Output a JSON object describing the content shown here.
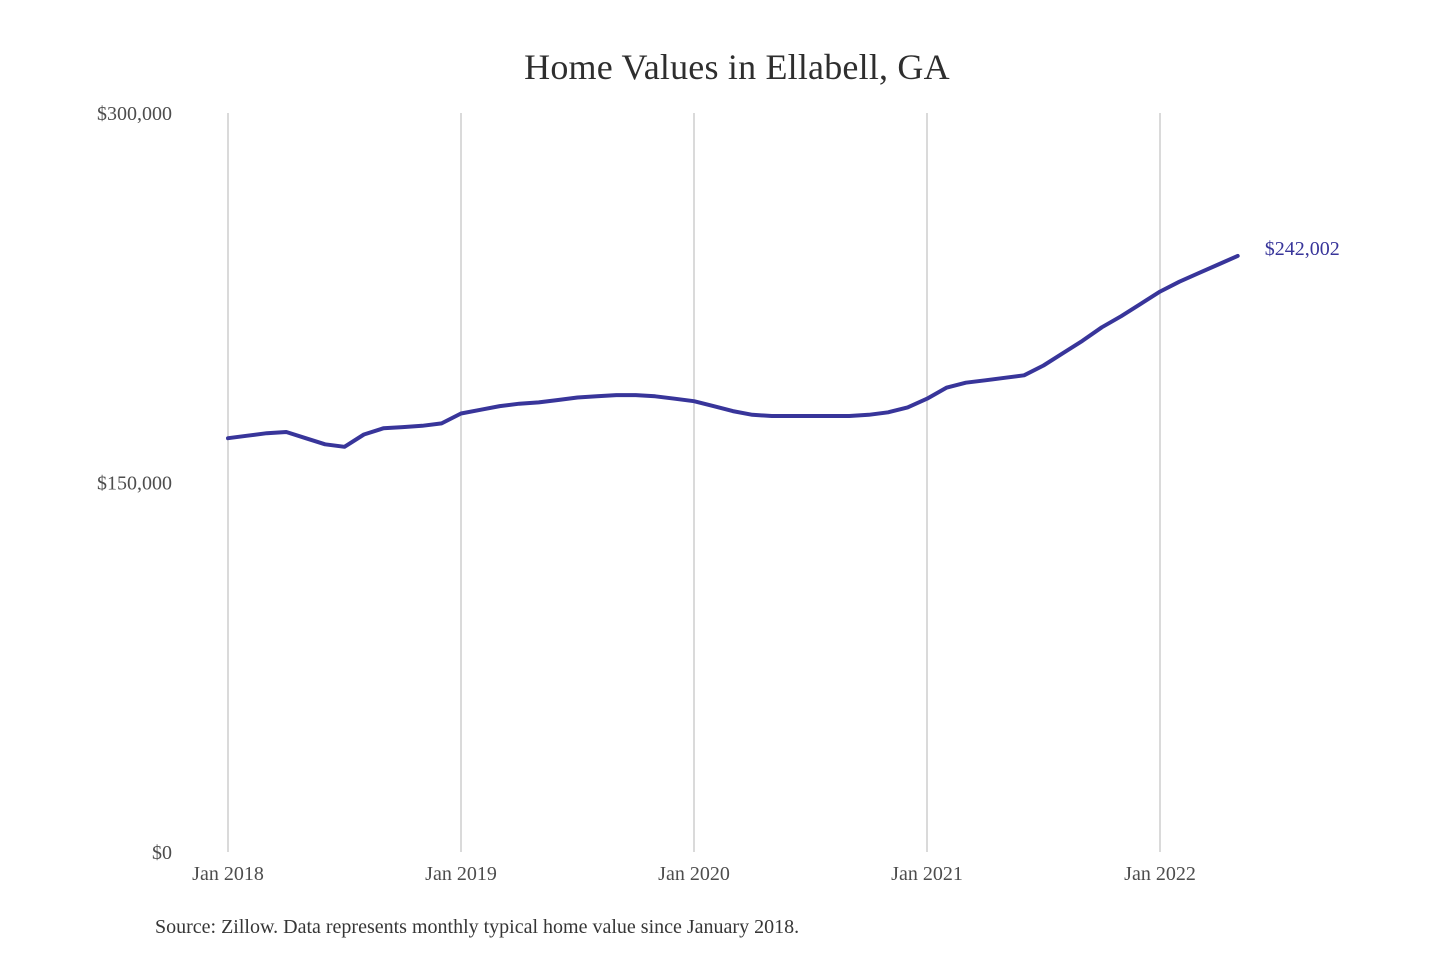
{
  "title": "Home Values in Ellabell, GA",
  "source_note": "Source: Zillow. Data represents monthly typical home value since January 2018.",
  "annotation": {
    "label": "$242,002"
  },
  "colors": {
    "line": "#38359a",
    "grid": "#cbcbcb",
    "axis_text": "#4d4d4d",
    "title_text": "#2e2e2e",
    "annotation_text": "#38359a",
    "background": "#ffffff"
  },
  "chart_data": {
    "type": "line",
    "title": "Home Values in Ellabell, GA",
    "series_name": "Monthly typical home value",
    "xlabel": "",
    "ylabel": "",
    "ylim": [
      0,
      300000
    ],
    "grid": "vertical-only",
    "legend": "none",
    "x": [
      "2018-01",
      "2018-02",
      "2018-03",
      "2018-04",
      "2018-05",
      "2018-06",
      "2018-07",
      "2018-08",
      "2018-09",
      "2018-10",
      "2018-11",
      "2018-12",
      "2019-01",
      "2019-02",
      "2019-03",
      "2019-04",
      "2019-05",
      "2019-06",
      "2019-07",
      "2019-08",
      "2019-09",
      "2019-10",
      "2019-11",
      "2019-12",
      "2020-01",
      "2020-02",
      "2020-03",
      "2020-04",
      "2020-05",
      "2020-06",
      "2020-07",
      "2020-08",
      "2020-09",
      "2020-10",
      "2020-11",
      "2020-12",
      "2021-01",
      "2021-02",
      "2021-03",
      "2021-04",
      "2021-05",
      "2021-06",
      "2021-07",
      "2021-08",
      "2021-09",
      "2021-10",
      "2021-11",
      "2021-12",
      "2022-01",
      "2022-02",
      "2022-03",
      "2022-04",
      "2022-05"
    ],
    "values": [
      168000,
      169000,
      170000,
      170500,
      168000,
      165500,
      164500,
      169500,
      172000,
      172500,
      173000,
      174000,
      178000,
      179500,
      181000,
      182000,
      182500,
      183500,
      184500,
      185000,
      185500,
      185500,
      185000,
      184000,
      183000,
      181000,
      179000,
      177500,
      177000,
      177000,
      177000,
      177000,
      177000,
      177500,
      178500,
      180500,
      184000,
      188500,
      190500,
      191500,
      192500,
      193500,
      197500,
      202500,
      207500,
      213000,
      217500,
      222500,
      227500,
      231500,
      235000,
      238500,
      242002
    ],
    "y_ticks": [
      {
        "value": 0,
        "label": "$0"
      },
      {
        "value": 150000,
        "label": "$150,000"
      },
      {
        "value": 300000,
        "label": "$300,000"
      }
    ],
    "x_ticks": [
      {
        "month": 0,
        "label": "Jan 2018"
      },
      {
        "month": 12,
        "label": "Jan 2019"
      },
      {
        "month": 24,
        "label": "Jan 2020"
      },
      {
        "month": 36,
        "label": "Jan 2021"
      },
      {
        "month": 48,
        "label": "Jan 2022"
      }
    ],
    "last_value_label": "$242,002"
  }
}
